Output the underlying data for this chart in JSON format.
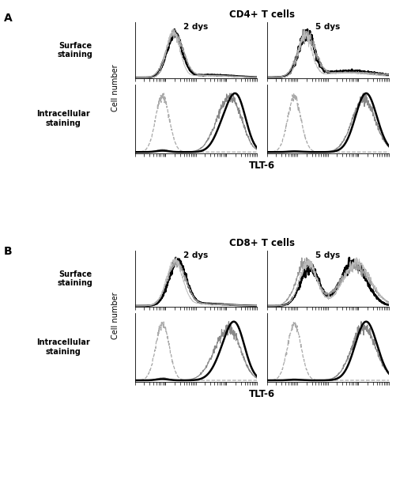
{
  "title_A": "CD4+ T cells",
  "title_B": "CD8+ T cells",
  "label_2dys": "2 dys",
  "label_5dys": "5 dys",
  "label_surface": "Surface\nstaining",
  "label_intracellular": "Intracellular\nstaining",
  "xlabel": "TLT-6",
  "ylabel": "Cell number",
  "panel_A_label": "A",
  "panel_B_label": "B",
  "bg_color": "#ffffff",
  "seed": 7
}
